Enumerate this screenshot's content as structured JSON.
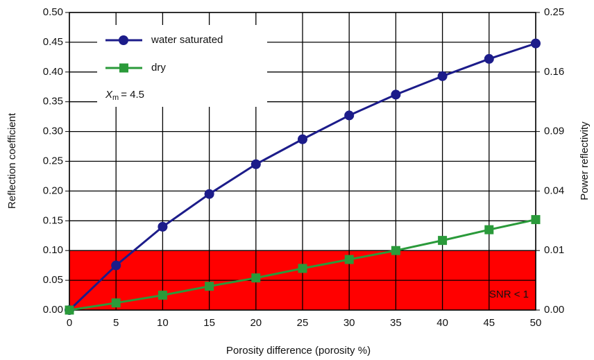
{
  "chart_data": {
    "type": "line",
    "xlabel": "Porosity difference (porosity %)",
    "ylabel": "Reflection coefficient",
    "y2label": "Power reflectivity",
    "x": [
      0,
      5,
      10,
      15,
      20,
      25,
      30,
      35,
      40,
      45,
      50
    ],
    "series": [
      {
        "name": "water saturated",
        "color": "#1c1c8a",
        "marker": "circle",
        "values": [
          0,
          0.075,
          0.14,
          0.195,
          0.245,
          0.287,
          0.327,
          0.362,
          0.393,
          0.422,
          0.448
        ]
      },
      {
        "name": "dry",
        "color": "#2a9a3a",
        "marker": "square",
        "values": [
          0,
          0.012,
          0.025,
          0.04,
          0.054,
          0.07,
          0.085,
          0.1,
          0.117,
          0.135,
          0.152
        ]
      }
    ],
    "xlim": [
      0,
      50
    ],
    "xticks": [
      0,
      5,
      10,
      15,
      20,
      25,
      30,
      35,
      40,
      45,
      50
    ],
    "ylim": [
      0,
      0.5
    ],
    "yticks": [
      {
        "value": 0,
        "label": "0.00"
      },
      0.05,
      {
        "value": 0.1,
        "label": "0.10"
      },
      0.15,
      {
        "value": 0.2,
        "label": "0.20"
      },
      0.25,
      {
        "value": 0.3,
        "label": "0.30"
      },
      0.35,
      {
        "value": 0.4,
        "label": "0.40"
      },
      0.45,
      {
        "value": 0.5,
        "label": "0.50"
      }
    ],
    "y2scale": "sqrt",
    "y2lim": [
      0,
      0.25
    ],
    "y2ticks": [
      {
        "value": 0,
        "label": "0.00"
      },
      0.01,
      0.04,
      0.09,
      0.16,
      0.25
    ],
    "grid": true,
    "legend": "upper left",
    "shaded_region": {
      "ylim": [
        0,
        0.1
      ],
      "color": "#ff0000",
      "label": "SNR < 1"
    },
    "annotation": {
      "symbol": "X",
      "subscript": "m",
      "text": "= 4.5"
    }
  }
}
